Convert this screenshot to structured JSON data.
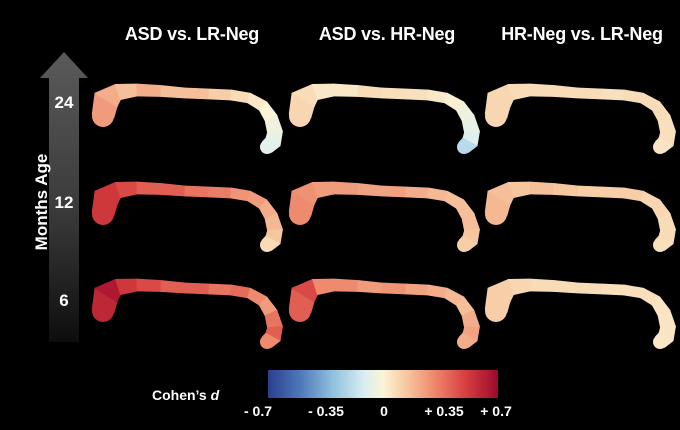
{
  "columns": [
    {
      "title": "ASD vs. LR-Neg"
    },
    {
      "title": "ASD vs. HR-Neg"
    },
    {
      "title": "HR-Neg vs. LR-Neg"
    }
  ],
  "axis": {
    "title": "Months Age",
    "rows": [
      "24",
      "12",
      "6"
    ]
  },
  "colorbar": {
    "label_prefix": "Cohen’s ",
    "label_symbol": "d",
    "ticks": [
      "- 0.7",
      "- 0.35",
      "0",
      "+ 0.35",
      "+ 0.7"
    ],
    "range": [
      -0.7,
      0.7
    ]
  },
  "panels": [
    {
      "row": "24",
      "column": "ASD vs. LR-Neg",
      "segment_d": [
        0.3,
        0.25,
        0.2,
        0.25,
        0.2,
        0.2,
        0.15,
        0.1,
        0.05,
        0.0,
        -0.05,
        -0.1,
        -0.12,
        -0.1
      ]
    },
    {
      "row": "24",
      "column": "ASD vs. HR-Neg",
      "segment_d": [
        0.12,
        0.1,
        0.05,
        0.05,
        0.1,
        0.08,
        0.08,
        0.05,
        0.02,
        -0.05,
        -0.1,
        -0.15,
        -0.25,
        -0.3
      ]
    },
    {
      "row": "24",
      "column": "HR-Neg vs. LR-Neg",
      "segment_d": [
        0.12,
        0.12,
        0.1,
        0.1,
        0.1,
        0.1,
        0.08,
        0.1,
        0.1,
        0.1,
        0.08,
        0.08,
        0.06,
        0.06
      ]
    },
    {
      "row": "12",
      "column": "ASD vs. LR-Neg",
      "segment_d": [
        0.55,
        0.55,
        0.5,
        0.45,
        0.45,
        0.4,
        0.38,
        0.32,
        0.3,
        0.25,
        0.22,
        0.18,
        0.1,
        0.05
      ]
    },
    {
      "row": "12",
      "column": "ASD vs. HR-Neg",
      "segment_d": [
        0.35,
        0.33,
        0.3,
        0.3,
        0.28,
        0.28,
        0.25,
        0.22,
        0.2,
        0.2,
        0.2,
        0.18,
        0.15,
        0.12
      ]
    },
    {
      "row": "12",
      "column": "HR-Neg vs. LR-Neg",
      "segment_d": [
        0.22,
        0.2,
        0.18,
        0.2,
        0.18,
        0.15,
        0.15,
        0.15,
        0.12,
        0.12,
        0.1,
        0.1,
        0.08,
        0.08
      ]
    },
    {
      "row": "6",
      "column": "ASD vs. LR-Neg",
      "segment_d": [
        0.6,
        0.65,
        0.55,
        0.5,
        0.45,
        0.45,
        0.4,
        0.42,
        0.35,
        0.3,
        0.4,
        0.45,
        0.35,
        0.3
      ]
    },
    {
      "row": "6",
      "column": "ASD vs. HR-Neg",
      "segment_d": [
        0.45,
        0.5,
        0.35,
        0.35,
        0.3,
        0.32,
        0.28,
        0.25,
        0.22,
        0.2,
        0.25,
        0.28,
        0.25,
        0.2
      ]
    },
    {
      "row": "6",
      "column": "HR-Neg vs. LR-Neg",
      "segment_d": [
        0.15,
        0.15,
        0.12,
        0.1,
        0.1,
        0.1,
        0.08,
        0.08,
        0.08,
        0.06,
        0.06,
        0.06,
        0.05,
        0.05
      ]
    }
  ],
  "colors": {
    "background": "#000000",
    "text": "#ffffff",
    "scale": [
      "#2a3f8f",
      "#4f77b8",
      "#8fc0de",
      "#d9eef2",
      "#fbf4d6",
      "#f6c8a0",
      "#ee8a6d",
      "#d63e3e",
      "#9c0a2c"
    ]
  }
}
